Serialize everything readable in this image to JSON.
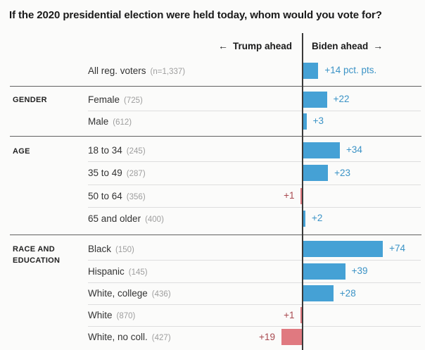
{
  "icons": {
    "left_arrow": "←",
    "right_arrow": "→"
  },
  "colors": {
    "biden_bar": "#45a1d5",
    "trump_bar": "#e07980",
    "biden_text": "#3b93c6",
    "trump_text": "#a8494f",
    "axis": "#3a3a3a"
  },
  "chart_data": {
    "type": "bar",
    "subtype": "diverging-horizontal",
    "title": "If the 2020 presidential election were held today, whom would you vote for?",
    "unit": "pct. pts.",
    "left_direction_label": "Trump ahead",
    "right_direction_label": "Biden ahead",
    "axis_note": "bars measure margin of lead in percentage points; Biden leads extend right, Trump leads extend left",
    "sections": [
      {
        "label": "",
        "rows": [
          {
            "label": "All reg. voters",
            "n": "(n=1,337)",
            "leader": "Biden",
            "value": 14,
            "value_label": "+14 pct. pts."
          }
        ]
      },
      {
        "label": "GENDER",
        "rows": [
          {
            "label": "Female",
            "n": "(725)",
            "leader": "Biden",
            "value": 22,
            "value_label": "+22"
          },
          {
            "label": "Male",
            "n": "(612)",
            "leader": "Biden",
            "value": 3,
            "value_label": "+3"
          }
        ]
      },
      {
        "label": "AGE",
        "rows": [
          {
            "label": "18 to 34",
            "n": "(245)",
            "leader": "Biden",
            "value": 34,
            "value_label": "+34"
          },
          {
            "label": "35 to 49",
            "n": "(287)",
            "leader": "Biden",
            "value": 23,
            "value_label": "+23"
          },
          {
            "label": "50 to 64",
            "n": "(356)",
            "leader": "Trump",
            "value": 1,
            "value_label": "+1"
          },
          {
            "label": "65 and older",
            "n": "(400)",
            "leader": "Biden",
            "value": 2,
            "value_label": "+2"
          }
        ]
      },
      {
        "label": "RACE AND EDUCATION",
        "rows": [
          {
            "label": "Black",
            "n": "(150)",
            "leader": "Biden",
            "value": 74,
            "value_label": "+74"
          },
          {
            "label": "Hispanic",
            "n": "(145)",
            "leader": "Biden",
            "value": 39,
            "value_label": "+39"
          },
          {
            "label": "White, college",
            "n": "(436)",
            "leader": "Biden",
            "value": 28,
            "value_label": "+28"
          },
          {
            "label": "White",
            "n": "(870)",
            "leader": "Trump",
            "value": 1,
            "value_label": "+1"
          },
          {
            "label": "White, no coll.",
            "n": "(427)",
            "leader": "Trump",
            "value": 19,
            "value_label": "+19"
          }
        ]
      }
    ]
  }
}
